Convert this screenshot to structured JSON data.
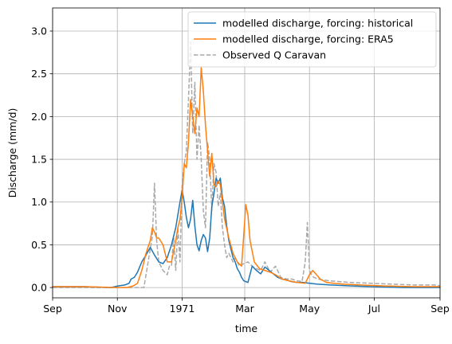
{
  "chart_data": {
    "type": "line",
    "xlabel": "time",
    "ylabel": "Discharge (mm/d)",
    "xlim": [
      0,
      365
    ],
    "ylim": [
      -0.12,
      3.27
    ],
    "x_ticks": [
      {
        "pos": 0,
        "label": "Sep"
      },
      {
        "pos": 61,
        "label": "Nov"
      },
      {
        "pos": 122,
        "label": "1971"
      },
      {
        "pos": 181,
        "label": "Mar"
      },
      {
        "pos": 242,
        "label": "May"
      },
      {
        "pos": 303,
        "label": "Jul"
      },
      {
        "pos": 365,
        "label": "Sep"
      }
    ],
    "y_ticks": [
      {
        "value": 0.0,
        "label": "0.0"
      },
      {
        "value": 0.5,
        "label": "0.5"
      },
      {
        "value": 1.0,
        "label": "1.0"
      },
      {
        "value": 1.5,
        "label": "1.5"
      },
      {
        "value": 2.0,
        "label": "2.0"
      },
      {
        "value": 2.5,
        "label": "2.5"
      },
      {
        "value": 3.0,
        "label": "3.0"
      }
    ],
    "grid": true,
    "legend_position": "top-right",
    "series": [
      {
        "name": "modelled discharge, forcing: historical",
        "color": "#1f77b4",
        "style": "solid",
        "x": [
          0,
          30,
          55,
          62,
          68,
          72,
          74,
          77,
          80,
          84,
          88,
          92,
          96,
          100,
          104,
          108,
          112,
          114,
          116,
          118,
          120,
          122,
          124,
          126,
          128,
          130,
          132,
          134,
          136,
          138,
          140,
          142,
          144,
          146,
          148,
          150,
          152,
          154,
          156,
          158,
          160,
          162,
          164,
          166,
          168,
          170,
          172,
          174,
          176,
          178,
          180,
          184,
          188,
          192,
          196,
          200,
          204,
          208,
          212,
          216,
          220,
          225,
          230,
          236,
          242,
          250,
          262,
          280,
          300,
          330,
          365
        ],
        "y": [
          0.01,
          0.01,
          0.0,
          0.02,
          0.03,
          0.05,
          0.1,
          0.12,
          0.18,
          0.3,
          0.38,
          0.47,
          0.38,
          0.3,
          0.28,
          0.35,
          0.5,
          0.6,
          0.7,
          0.85,
          1.0,
          1.14,
          1.0,
          0.82,
          0.7,
          0.8,
          1.02,
          0.72,
          0.5,
          0.43,
          0.55,
          0.62,
          0.58,
          0.42,
          0.58,
          0.95,
          1.1,
          1.28,
          1.22,
          1.28,
          1.05,
          0.95,
          0.72,
          0.55,
          0.45,
          0.35,
          0.3,
          0.22,
          0.18,
          0.12,
          0.08,
          0.06,
          0.25,
          0.2,
          0.16,
          0.24,
          0.2,
          0.16,
          0.12,
          0.1,
          0.09,
          0.07,
          0.06,
          0.06,
          0.05,
          0.04,
          0.03,
          0.02,
          0.01,
          0.0,
          0.0
        ]
      },
      {
        "name": "modelled discharge, forcing: ERA5",
        "color": "#ff7f0e",
        "style": "solid",
        "x": [
          0,
          30,
          60,
          70,
          76,
          80,
          84,
          88,
          92,
          94,
          96,
          98,
          100,
          104,
          108,
          112,
          116,
          118,
          120,
          122,
          124,
          126,
          128,
          130,
          132,
          134,
          136,
          138,
          140,
          142,
          144,
          146,
          148,
          150,
          152,
          154,
          156,
          158,
          160,
          162,
          166,
          170,
          174,
          178,
          180,
          182,
          184,
          186,
          190,
          195,
          200,
          205,
          210,
          216,
          222,
          230,
          238,
          242,
          245,
          248,
          252,
          258,
          265,
          275,
          290,
          310,
          340,
          365
        ],
        "y": [
          0.01,
          0.01,
          0.0,
          0.0,
          0.02,
          0.05,
          0.2,
          0.4,
          0.55,
          0.7,
          0.65,
          0.58,
          0.58,
          0.5,
          0.3,
          0.3,
          0.55,
          0.7,
          0.8,
          1.05,
          1.45,
          1.4,
          1.7,
          2.2,
          2.0,
          1.8,
          2.1,
          2.0,
          2.57,
          2.3,
          1.9,
          1.6,
          1.3,
          1.57,
          1.2,
          1.18,
          1.25,
          1.2,
          1.0,
          0.8,
          0.58,
          0.4,
          0.3,
          0.25,
          0.6,
          0.97,
          0.85,
          0.55,
          0.3,
          0.22,
          0.2,
          0.18,
          0.15,
          0.1,
          0.08,
          0.06,
          0.05,
          0.15,
          0.2,
          0.16,
          0.1,
          0.06,
          0.05,
          0.04,
          0.03,
          0.02,
          0.01,
          0.01
        ]
      },
      {
        "name": "Observed Q Caravan",
        "color": "#a9a9a9",
        "style": "dashed",
        "x": [
          0,
          30,
          60,
          86,
          90,
          94,
          96,
          98,
          100,
          104,
          108,
          110,
          112,
          114,
          116,
          118,
          120,
          122,
          124,
          126,
          128,
          130,
          132,
          134,
          136,
          138,
          140,
          142,
          144,
          146,
          148,
          150,
          152,
          154,
          156,
          158,
          160,
          162,
          164,
          166,
          168,
          170,
          172,
          176,
          180,
          184,
          188,
          192,
          196,
          200,
          205,
          210,
          215,
          220,
          225,
          230,
          235,
          238,
          240,
          242,
          244,
          246,
          250,
          260,
          280,
          300,
          320,
          340,
          360,
          365
        ],
        "y": [
          0.0,
          0.0,
          0.0,
          0.0,
          0.3,
          0.6,
          1.22,
          0.55,
          0.3,
          0.2,
          0.15,
          0.25,
          0.25,
          0.6,
          0.2,
          0.7,
          0.3,
          1.2,
          1.45,
          1.6,
          2.2,
          2.87,
          1.8,
          2.4,
          1.5,
          1.9,
          1.5,
          0.9,
          0.7,
          1.7,
          1.5,
          0.9,
          1.45,
          1.35,
          0.95,
          1.1,
          0.7,
          0.5,
          0.35,
          0.4,
          0.35,
          0.3,
          0.35,
          0.25,
          0.28,
          0.3,
          0.25,
          0.22,
          0.2,
          0.3,
          0.18,
          0.25,
          0.12,
          0.1,
          0.1,
          0.08,
          0.07,
          0.3,
          0.76,
          0.2,
          0.15,
          0.12,
          0.1,
          0.08,
          0.06,
          0.05,
          0.04,
          0.03,
          0.03,
          0.02
        ]
      }
    ]
  }
}
